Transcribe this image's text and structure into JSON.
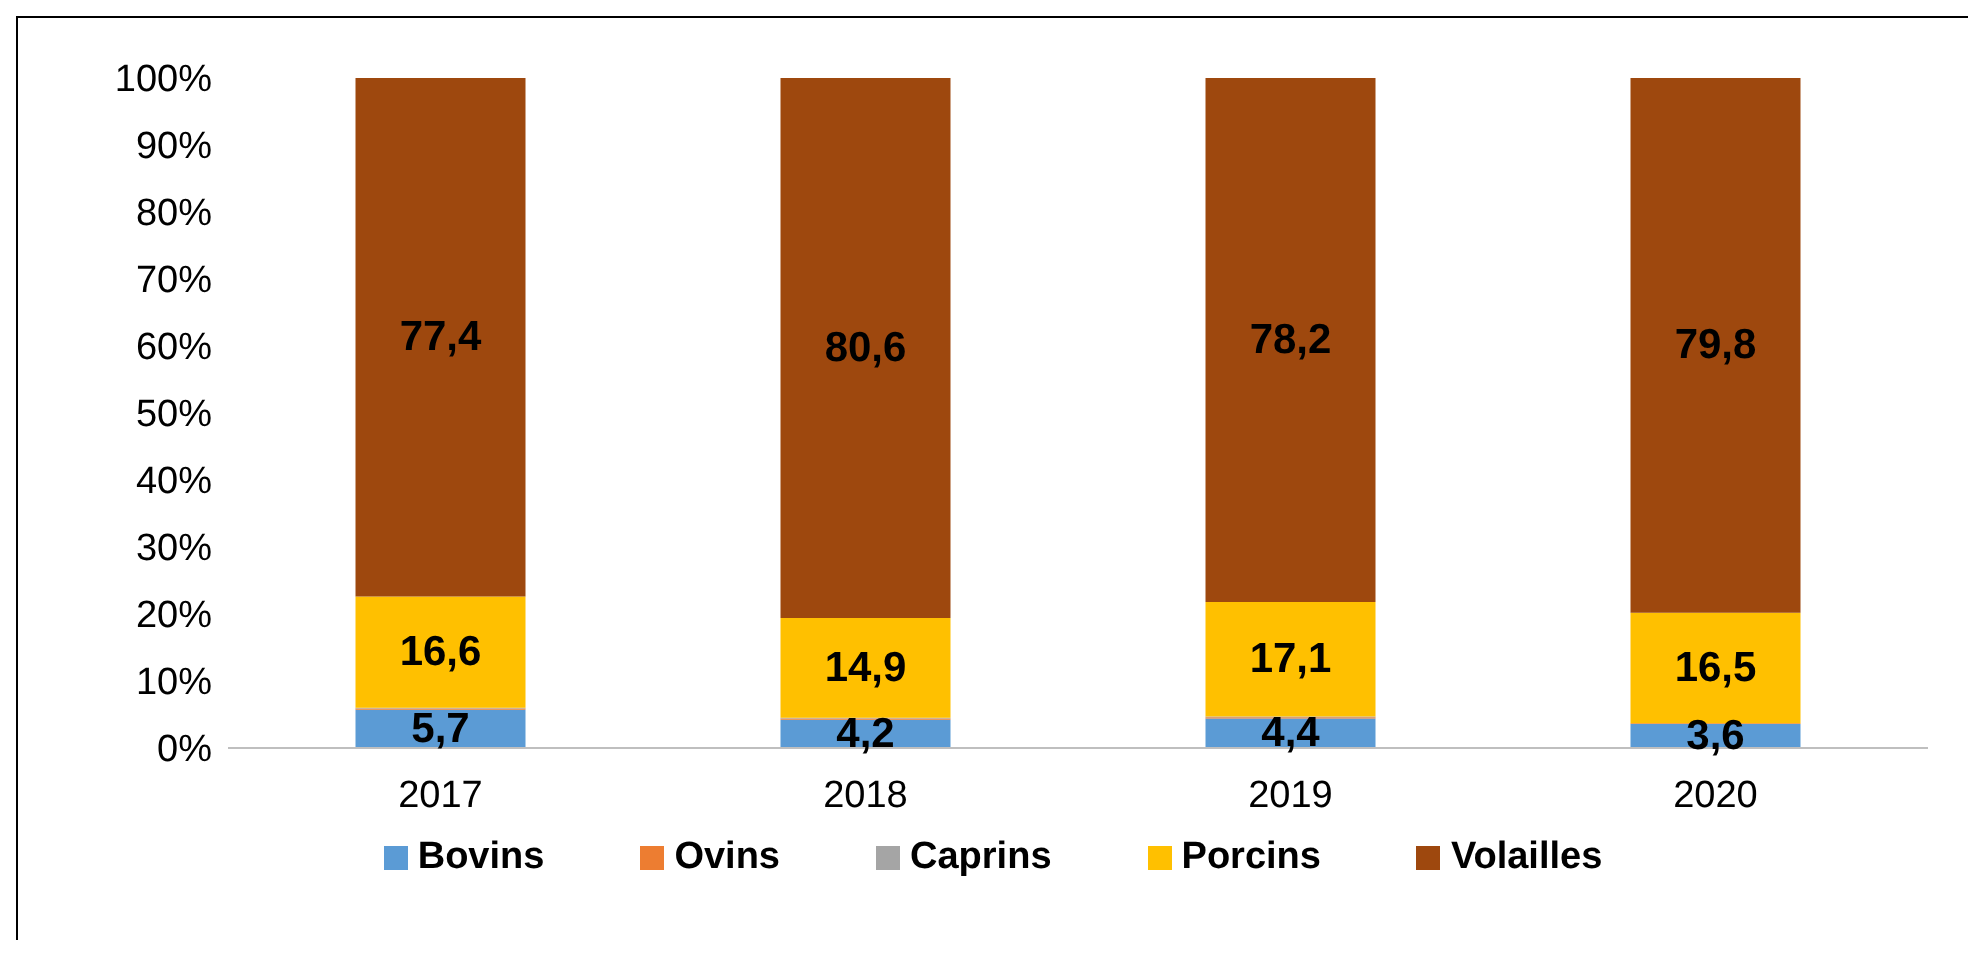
{
  "chart_data": {
    "type": "bar",
    "stacked": true,
    "categories": [
      "2017",
      "2018",
      "2019",
      "2020"
    ],
    "series": [
      {
        "name": "Bovins",
        "color": "#5b9bd5",
        "values": [
          5.7,
          4.2,
          4.4,
          3.6
        ],
        "value_labels": [
          "5,7",
          "4,2",
          "4,4",
          "3,6"
        ]
      },
      {
        "name": "Ovins",
        "color": "#ed7d31",
        "values": [
          0.2,
          0.2,
          0.2,
          0.1
        ]
      },
      {
        "name": "Caprins",
        "color": "#a5a5a5",
        "values": [
          0.1,
          0.1,
          0.1,
          0.0
        ]
      },
      {
        "name": "Porcins",
        "color": "#ffc000",
        "values": [
          16.6,
          14.9,
          17.1,
          16.5
        ],
        "value_labels": [
          "16,6",
          "14,9",
          "17,1",
          "16,5"
        ]
      },
      {
        "name": "Volailles",
        "color": "#9e480e",
        "values": [
          77.4,
          80.6,
          78.2,
          79.8
        ],
        "value_labels": [
          "77,4",
          "80,6",
          "78,2",
          "79,8"
        ]
      }
    ],
    "ylim": [
      0,
      100
    ],
    "yticks": [
      {
        "value": 0,
        "label": "0%"
      },
      {
        "value": 10,
        "label": "10%"
      },
      {
        "value": 20,
        "label": "20%"
      },
      {
        "value": 30,
        "label": "30%"
      },
      {
        "value": 40,
        "label": "40%"
      },
      {
        "value": 50,
        "label": "50%"
      },
      {
        "value": 60,
        "label": "60%"
      },
      {
        "value": 70,
        "label": "70%"
      },
      {
        "value": 80,
        "label": "80%"
      },
      {
        "value": 90,
        "label": "90%"
      },
      {
        "value": 100,
        "label": "100%"
      }
    ],
    "grid": false,
    "legend": "bottom"
  }
}
